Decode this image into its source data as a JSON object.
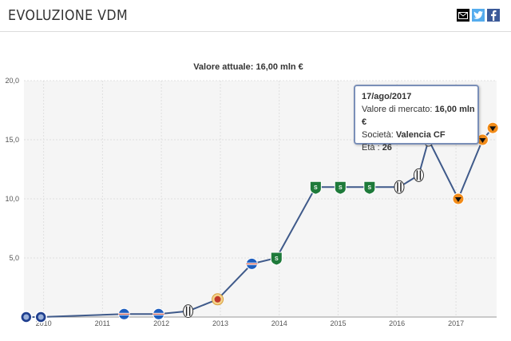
{
  "header": {
    "title": "EVOLUZIONE VDM",
    "share_icons": [
      "mail-icon",
      "twitter-icon",
      "facebook-icon"
    ]
  },
  "colors": {
    "line": "#3f5a8a",
    "grid": "#e0e0e0",
    "plot_bg": "#f5f5f5",
    "tooltip_border": "#7a8fb8",
    "mail": "#000000",
    "twitter": "#55acee",
    "facebook": "#3b5998"
  },
  "tooltip": {
    "date": "17/ago/2017",
    "value_label": "Valore di mercato:",
    "value": "16,00 mln €",
    "club_label": "Società:",
    "club": "Valencia CF",
    "age_label": "Età :",
    "age": "26"
  },
  "chart_data": {
    "type": "line",
    "title": "Valore attuale: 16,00 mln €",
    "x_type": "datetime",
    "xlim": [
      "2009-09-01",
      "2017-09-10"
    ],
    "x_tick_labels": [
      "2010",
      "2011",
      "2012",
      "2013",
      "2014",
      "2015",
      "2016",
      "2017"
    ],
    "x_ticks": [
      "2010-01-01",
      "2011-01-01",
      "2012-01-01",
      "2013-01-01",
      "2014-01-01",
      "2015-01-01",
      "2016-01-01",
      "2017-01-01"
    ],
    "ylim": [
      0,
      20
    ],
    "y_ticks": [
      5,
      10,
      15,
      20
    ],
    "y_tick_labels": [
      "5,0",
      "10,0",
      "15,0",
      "20,0"
    ],
    "grid": true,
    "legend": "none",
    "series": [
      {
        "points": [
          {
            "date": "2009-09-15",
            "value": 0.0,
            "club": "Atalanta"
          },
          {
            "date": "2009-12-15",
            "value": 0.0,
            "club": "Atalanta"
          },
          {
            "date": "2011-05-15",
            "value": 0.25,
            "club": "Sampdoria"
          },
          {
            "date": "2011-12-15",
            "value": 0.25,
            "club": "Sampdoria"
          },
          {
            "date": "2012-06-15",
            "value": 0.5,
            "club": "Juventus"
          },
          {
            "date": "2012-12-15",
            "value": 1.5,
            "club": "Cittadella"
          },
          {
            "date": "2013-07-15",
            "value": 4.5,
            "club": "Sampdoria"
          },
          {
            "date": "2013-12-15",
            "value": 5.0,
            "club": "Sassuolo"
          },
          {
            "date": "2014-08-15",
            "value": 11.0,
            "club": "Sassuolo"
          },
          {
            "date": "2015-01-15",
            "value": 11.0,
            "club": "Sassuolo"
          },
          {
            "date": "2015-07-15",
            "value": 11.0,
            "club": "Sassuolo"
          },
          {
            "date": "2016-01-15",
            "value": 11.0,
            "club": "Juventus"
          },
          {
            "date": "2016-05-15",
            "value": 12.0,
            "club": "Juventus"
          },
          {
            "date": "2016-07-15",
            "value": 15.0,
            "club": "Juventus"
          },
          {
            "date": "2017-01-15",
            "value": 10.0,
            "club": "Valencia CF"
          },
          {
            "date": "2017-06-15",
            "value": 15.0,
            "club": "Valencia CF"
          },
          {
            "date": "2017-08-17",
            "value": 16.0,
            "club": "Valencia CF"
          }
        ]
      }
    ]
  }
}
